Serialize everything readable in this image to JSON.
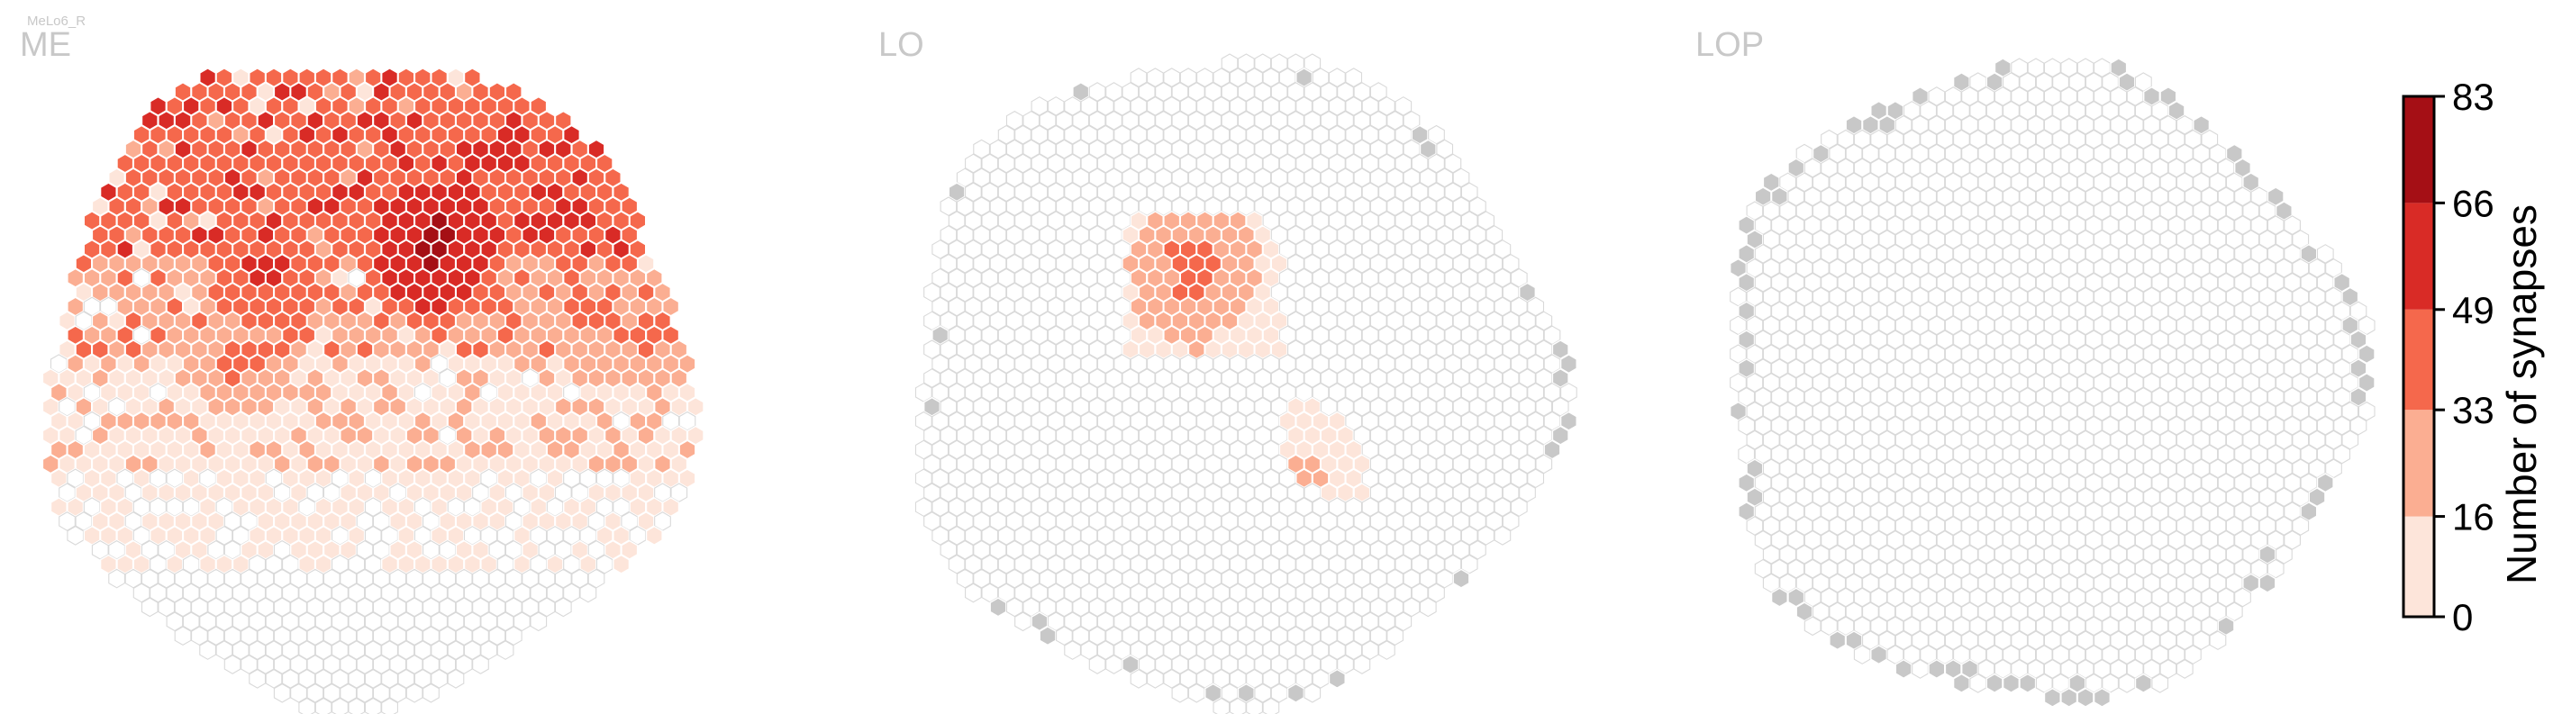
{
  "cell_type": "MeLo6_R",
  "colors": {
    "empty_fill": "#ffffff",
    "empty_stroke": "#d9d9d9",
    "out_of_range": "#c8c8c8",
    "bins": [
      "#fde5da",
      "#fbae92",
      "#f5684c",
      "#d92b26",
      "#a50f15"
    ]
  },
  "chart_data": [
    {
      "type": "heatmap",
      "title": "ME",
      "values": [
        {
          "x": 1.2,
          "y": 2.5,
          "level": 3
        },
        {
          "x": 1.4,
          "y": 2.7,
          "level": 4
        },
        {
          "x": 1.7,
          "y": 3.0,
          "level": 3
        },
        {
          "x": 2.5,
          "y": 2.0,
          "level": 4
        },
        {
          "x": 2.3,
          "y": 2.3,
          "level": 3
        },
        {
          "x": 3.0,
          "y": 3.2,
          "level": 4
        },
        {
          "x": 0.8,
          "y": 1.5,
          "level": 5
        },
        {
          "x": 0.9,
          "y": 1.7,
          "level": 5
        },
        {
          "x": 1.1,
          "y": 1.9,
          "level": 4
        },
        {
          "x": -0.5,
          "y": 2.4,
          "level": 3
        },
        {
          "x": -0.8,
          "y": 2.0,
          "level": 3
        },
        {
          "x": -1.2,
          "y": 1.3,
          "level": 4
        },
        {
          "x": -1.5,
          "y": 0.2,
          "level": 3
        },
        {
          "x": 2.7,
          "y": 0.8,
          "level": 3
        },
        {
          "x": 3.4,
          "y": 0.5,
          "level": 3
        },
        {
          "x": 1.5,
          "y": 0.9,
          "level": 3
        },
        {
          "x": 0.2,
          "y": 0.5,
          "level": 2
        },
        {
          "x": -0.6,
          "y": -0.2,
          "level": 2
        }
      ]
    },
    {
      "type": "heatmap",
      "title": "LO",
      "values": [
        {
          "x": -0.55,
          "y": 1.45,
          "level": 3
        },
        {
          "x": -0.3,
          "y": 1.35,
          "level": 3
        },
        {
          "x": -0.45,
          "y": 1.15,
          "level": 3
        },
        {
          "x": -0.7,
          "y": 1.05,
          "level": 2
        },
        {
          "x": -0.9,
          "y": 0.85,
          "level": 2
        },
        {
          "x": -0.4,
          "y": 0.55,
          "level": 2
        },
        {
          "x": 0.9,
          "y": -1.1,
          "level": 2
        }
      ]
    },
    {
      "type": "heatmap",
      "title": "LOP",
      "values": []
    }
  ],
  "colorbar": {
    "label": "Number of synapses",
    "ticks": [
      {
        "value": 83,
        "label": "83"
      },
      {
        "value": 66,
        "label": "66"
      },
      {
        "value": 49,
        "label": "49"
      },
      {
        "value": 33,
        "label": "33"
      },
      {
        "value": 16,
        "label": "16"
      },
      {
        "value": 0,
        "label": "0"
      }
    ],
    "min": 0,
    "max": 83
  }
}
